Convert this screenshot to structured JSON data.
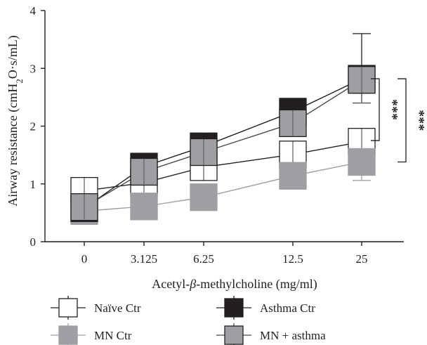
{
  "chart_data": {
    "type": "line",
    "xlabel_prefix": "Acetyl-",
    "xlabel_beta": "β",
    "xlabel_suffix": "-methylcholine (mg/ml)",
    "ylabel_prefix": "Airway resistance (cmH",
    "ylabel_sub": "2",
    "ylabel_suffix": "O·s/mL)",
    "categories": [
      "0",
      "3.125",
      "6.25",
      "12.5",
      "25"
    ],
    "ylim": [
      0,
      4
    ],
    "yticks": [
      "0",
      "1",
      "2",
      "3",
      "4"
    ],
    "series": [
      {
        "name": "Naïve Ctr",
        "marker_color": "#ffffff",
        "line_color": "#231f20",
        "values": [
          0.88,
          1.02,
          1.29,
          1.51,
          1.73
        ],
        "err_low": [
          0.1,
          0.1,
          0.12,
          0.15,
          0.18
        ],
        "err_high": [
          0.1,
          0.1,
          0.12,
          0.15,
          0.2
        ]
      },
      {
        "name": "Asthma Ctr",
        "marker_color": "#231f20",
        "line_color": "#231f20",
        "values": [
          0.58,
          1.3,
          1.65,
          2.25,
          2.82
        ],
        "err_low": [
          0.08,
          0.12,
          0.15,
          0.2,
          0.25
        ],
        "err_high": [
          0.08,
          0.12,
          0.16,
          0.2,
          0.78
        ]
      },
      {
        "name": "MN Ctr",
        "marker_color": "#9d9fa2",
        "line_color": "#9d9fa2",
        "values": [
          0.53,
          0.61,
          0.77,
          1.14,
          1.38
        ],
        "err_low": [
          0.08,
          0.15,
          0.22,
          0.15,
          0.32
        ],
        "err_high": [
          0.08,
          0.15,
          0.22,
          0.15,
          0.12
        ]
      },
      {
        "name": "MN + asthma",
        "marker_color": "#9d9fa2",
        "marker_stroke": "#231f20",
        "line_color": "#4a4a4c",
        "values": [
          0.6,
          1.21,
          1.55,
          2.05,
          2.8
        ],
        "err_low": [
          0.08,
          0.12,
          0.15,
          0.2,
          0.4
        ],
        "err_high": [
          0.08,
          0.12,
          0.15,
          0.2,
          0.22
        ]
      }
    ],
    "significance": [
      {
        "label": "***",
        "from": 1.75,
        "to": 2.82
      },
      {
        "label": "***",
        "from": 1.38,
        "to": 2.82
      }
    ]
  }
}
